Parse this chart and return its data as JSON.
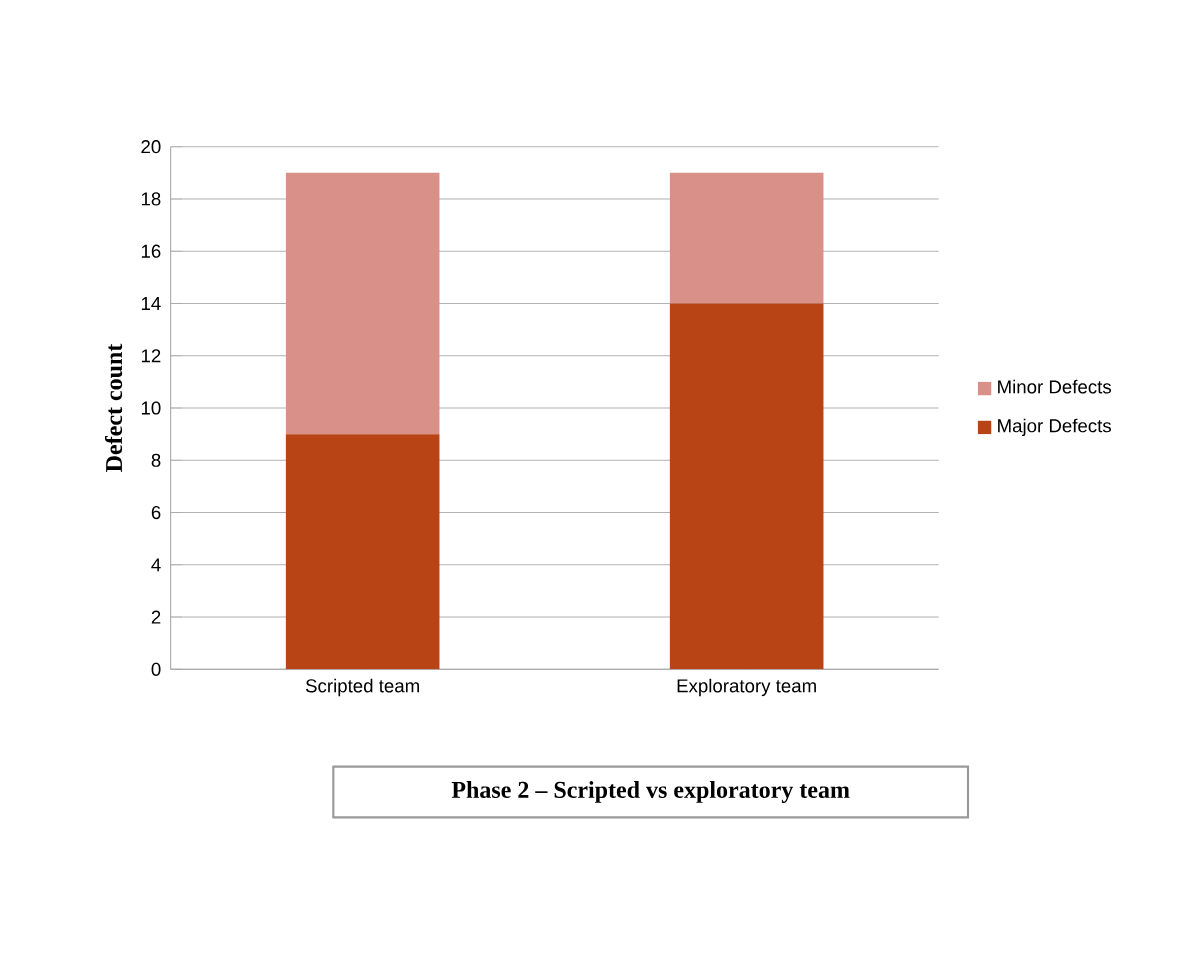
{
  "chart_data": {
    "type": "bar",
    "stacked": true,
    "title": "Phase 2 – Scripted vs exploratory team",
    "ylabel": "Defect count",
    "categories": [
      "Scripted team",
      "Exploratory team"
    ],
    "series": [
      {
        "name": "Major Defects",
        "color": "#b84314",
        "values": [
          9,
          14
        ]
      },
      {
        "name": "Minor Defects",
        "color": "#d99088",
        "values": [
          10,
          5
        ]
      }
    ],
    "ylim": [
      0,
      20
    ],
    "yticks": [
      0,
      2,
      4,
      6,
      8,
      10,
      12,
      14,
      16,
      18,
      20
    ],
    "grid": "y",
    "legend": "right"
  }
}
